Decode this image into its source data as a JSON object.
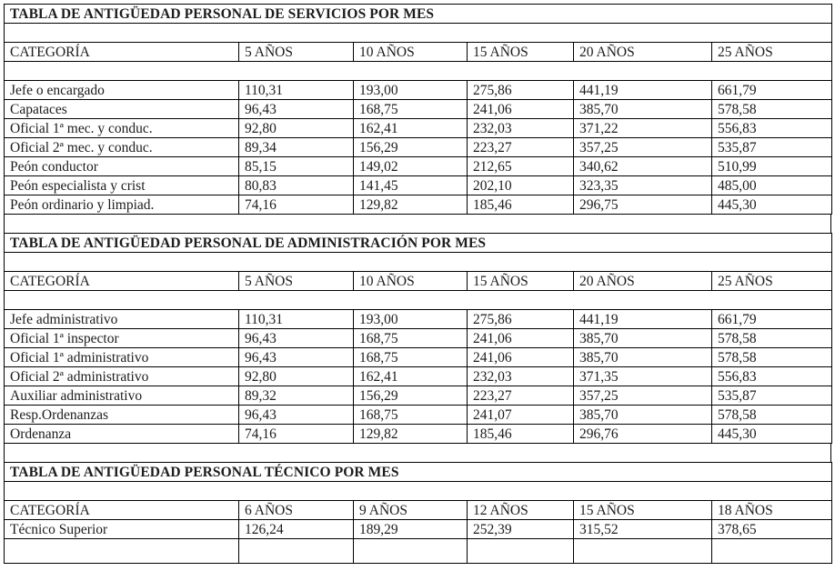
{
  "tables": [
    {
      "title": "TABLA DE ANTIGÜEDAD PERSONAL DE SERVICIOS POR MES",
      "headers": [
        "CATEGORÍA",
        "5 AÑOS",
        "10 AÑOS",
        "15 AÑOS",
        "20 AÑOS",
        "25 AÑOS"
      ],
      "rows": [
        [
          "Jefe o encargado",
          "110,31",
          "193,00",
          "275,86",
          "441,19",
          "661,79"
        ],
        [
          "Capataces",
          "96,43",
          "168,75",
          "241,06",
          "385,70",
          "578,58"
        ],
        [
          "Oficial 1ª mec. y conduc.",
          "92,80",
          "162,41",
          "232,03",
          "371,22",
          "556,83"
        ],
        [
          "Oficial 2ª mec. y conduc.",
          "89,34",
          "156,29",
          "223,27",
          "357,25",
          "535,87"
        ],
        [
          "Peón conductor",
          "85,15",
          "149,02",
          "212,65",
          "340,62",
          "510,99"
        ],
        [
          "Peón especialista y crist",
          "80,83",
          "141,45",
          "202,10",
          "323,35",
          "485,00"
        ],
        [
          "Peón ordinario y limpiad.",
          "74,16",
          "129,82",
          "185,46",
          "296,75",
          "445,30"
        ]
      ]
    },
    {
      "title": "TABLA DE ANTIGÜEDAD PERSONAL DE ADMINISTRACIÓN POR MES",
      "headers": [
        "CATEGORÍA",
        "5 AÑOS",
        "10 AÑOS",
        "15 AÑOS",
        "20 AÑOS",
        "25 AÑOS"
      ],
      "rows": [
        [
          "Jefe administrativo",
          "110,31",
          "193,00",
          "275,86",
          "441,19",
          "661,79"
        ],
        [
          "Oficial 1ª inspector",
          "96,43",
          "168,75",
          "241,06",
          "385,70",
          "578,58"
        ],
        [
          "Oficial 1ª administrativo",
          "96,43",
          "168,75",
          "241,06",
          "385,70",
          "578,58"
        ],
        [
          "Oficial 2ª administrativo",
          "92,80",
          "162,41",
          "232,03",
          "371,35",
          "556,83"
        ],
        [
          "Auxiliar administrativo",
          "89,32",
          "156,29",
          "223,27",
          "357,25",
          "535,87"
        ],
        [
          "Resp.Ordenanzas",
          "96,43",
          "168,75",
          "241,07",
          "385,70",
          "578,58"
        ],
        [
          "Ordenanza",
          "74,16",
          "129,82",
          "185,46",
          "296,76",
          "445,30"
        ]
      ]
    },
    {
      "title": "TABLA DE ANTIGÜEDAD PERSONAL TÉCNICO POR MES",
      "headers": [
        "CATEGORÍA",
        "6 AÑOS",
        "9 AÑOS",
        "12 AÑOS",
        "15 AÑOS",
        "18 AÑOS"
      ],
      "rows": [
        [
          "Técnico Superior",
          "126,24",
          "189,29",
          "252,39",
          "315,52",
          "378,65"
        ]
      ]
    }
  ],
  "colors": {
    "border": "#000000",
    "text": "#1c1c1c",
    "background": "#ffffff"
  }
}
